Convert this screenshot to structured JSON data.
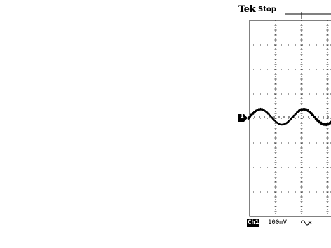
{
  "header": {
    "brand": "Tek",
    "run_state": "Stop"
  },
  "channel": {
    "marker_label": "1",
    "badge": "Ch1",
    "volts_per_div": "100mV",
    "bandwidth_icon": "bandwidth-limit-icon"
  },
  "display": {
    "graticule": "dotted",
    "trace_color": "#000000",
    "background_color": "#ffffff"
  }
}
